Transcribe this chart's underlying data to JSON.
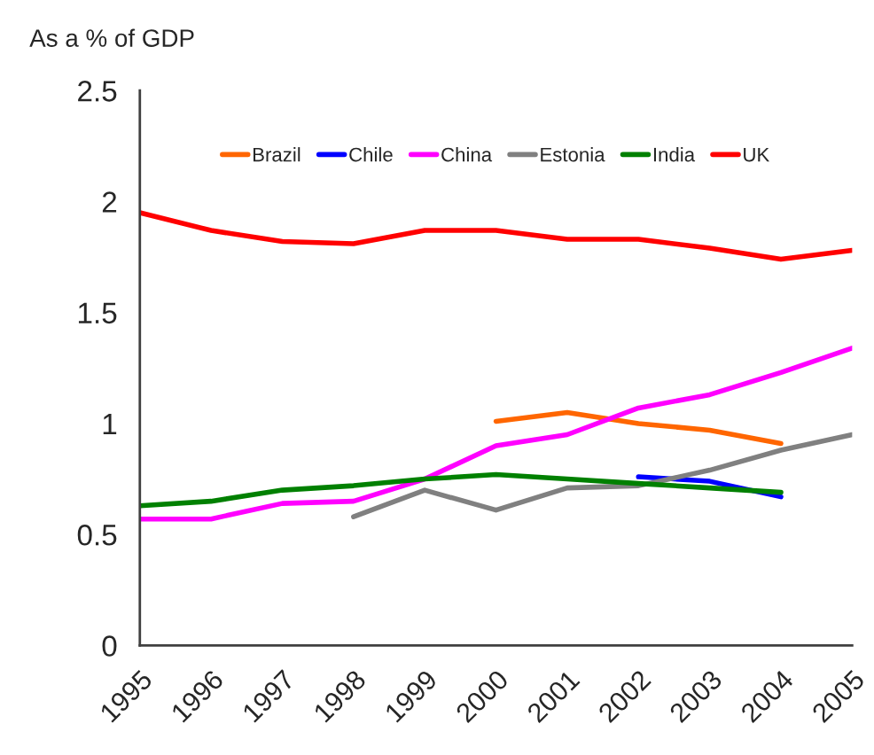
{
  "chart_data": {
    "type": "line",
    "ylabel": "As a % of GDP",
    "x": [
      1995,
      1996,
      1997,
      1998,
      1999,
      2000,
      2001,
      2002,
      2003,
      2004,
      2005
    ],
    "xlim": [
      1995,
      2005
    ],
    "xticks": [
      1995,
      1996,
      1997,
      1998,
      1999,
      2000,
      2001,
      2002,
      2003,
      2004,
      2005
    ],
    "ylim": [
      0,
      2.5
    ],
    "yticks": [
      0,
      0.5,
      1,
      1.5,
      2,
      2.5
    ],
    "legend": "top",
    "grid": false,
    "marker": "none",
    "line_style": "solid",
    "series": [
      {
        "name": "Brazil",
        "color": "#ff6600",
        "values": [
          null,
          null,
          null,
          null,
          null,
          1.01,
          1.05,
          1.0,
          0.97,
          0.91,
          null
        ]
      },
      {
        "name": "Chile",
        "color": "#0000ff",
        "values": [
          null,
          null,
          null,
          null,
          null,
          null,
          null,
          0.76,
          0.74,
          0.67,
          null
        ]
      },
      {
        "name": "China",
        "color": "#ff00ff",
        "values": [
          0.57,
          0.57,
          0.64,
          0.65,
          0.75,
          0.9,
          0.95,
          1.07,
          1.13,
          1.23,
          1.34
        ]
      },
      {
        "name": "Estonia",
        "color": "#808080",
        "values": [
          null,
          null,
          null,
          0.58,
          0.7,
          0.61,
          0.71,
          0.72,
          0.79,
          0.88,
          0.95
        ]
      },
      {
        "name": "India",
        "color": "#008000",
        "values": [
          0.63,
          0.65,
          0.7,
          0.72,
          0.75,
          0.77,
          0.75,
          0.73,
          0.71,
          0.69,
          null
        ]
      },
      {
        "name": "UK",
        "color": "#ff0000",
        "values": [
          1.95,
          1.87,
          1.82,
          1.81,
          1.87,
          1.87,
          1.83,
          1.83,
          1.79,
          1.74,
          1.78
        ]
      }
    ]
  }
}
